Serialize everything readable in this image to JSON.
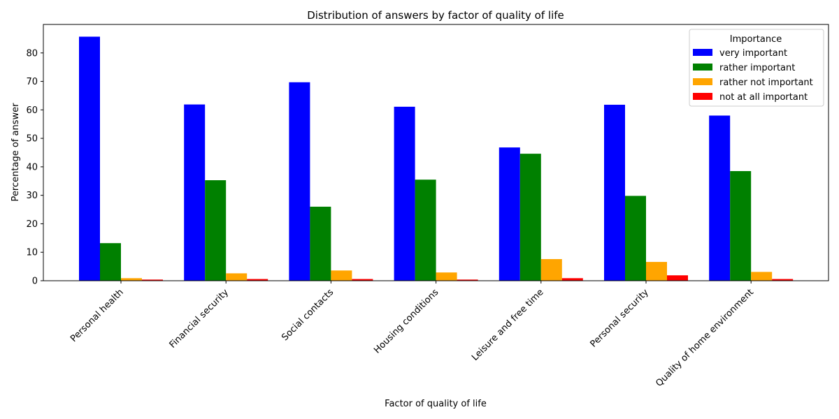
{
  "chart_data": {
    "type": "bar",
    "title": "Distribution of answers by factor of quality of life",
    "xlabel": "Factor of quality of life",
    "ylabel": "Percentage of answer",
    "ylim": [
      0,
      90
    ],
    "yticks": [
      0,
      10,
      20,
      30,
      40,
      50,
      60,
      70,
      80
    ],
    "grid": false,
    "legend": {
      "title": "Importance",
      "placement": "top-right"
    },
    "categories": [
      "Personal health",
      "Financial security",
      "Social contacts",
      "Housing conditions",
      "Leisure and free time",
      "Personal security",
      "Quality of home environment"
    ],
    "series": [
      {
        "name": "very important",
        "color": "#0000ff",
        "values": [
          85.7,
          61.9,
          69.7,
          61.1,
          46.8,
          61.8,
          58.0
        ]
      },
      {
        "name": "rather important",
        "color": "#008000",
        "values": [
          13.2,
          35.3,
          26.0,
          35.5,
          44.6,
          29.8,
          38.5
        ]
      },
      {
        "name": "rather not important",
        "color": "#ffa500",
        "values": [
          0.9,
          2.6,
          3.6,
          2.9,
          7.6,
          6.6,
          3.1
        ]
      },
      {
        "name": "not at all important",
        "color": "#ff0000",
        "values": [
          0.4,
          0.6,
          0.6,
          0.4,
          0.9,
          1.9,
          0.6
        ]
      }
    ]
  }
}
